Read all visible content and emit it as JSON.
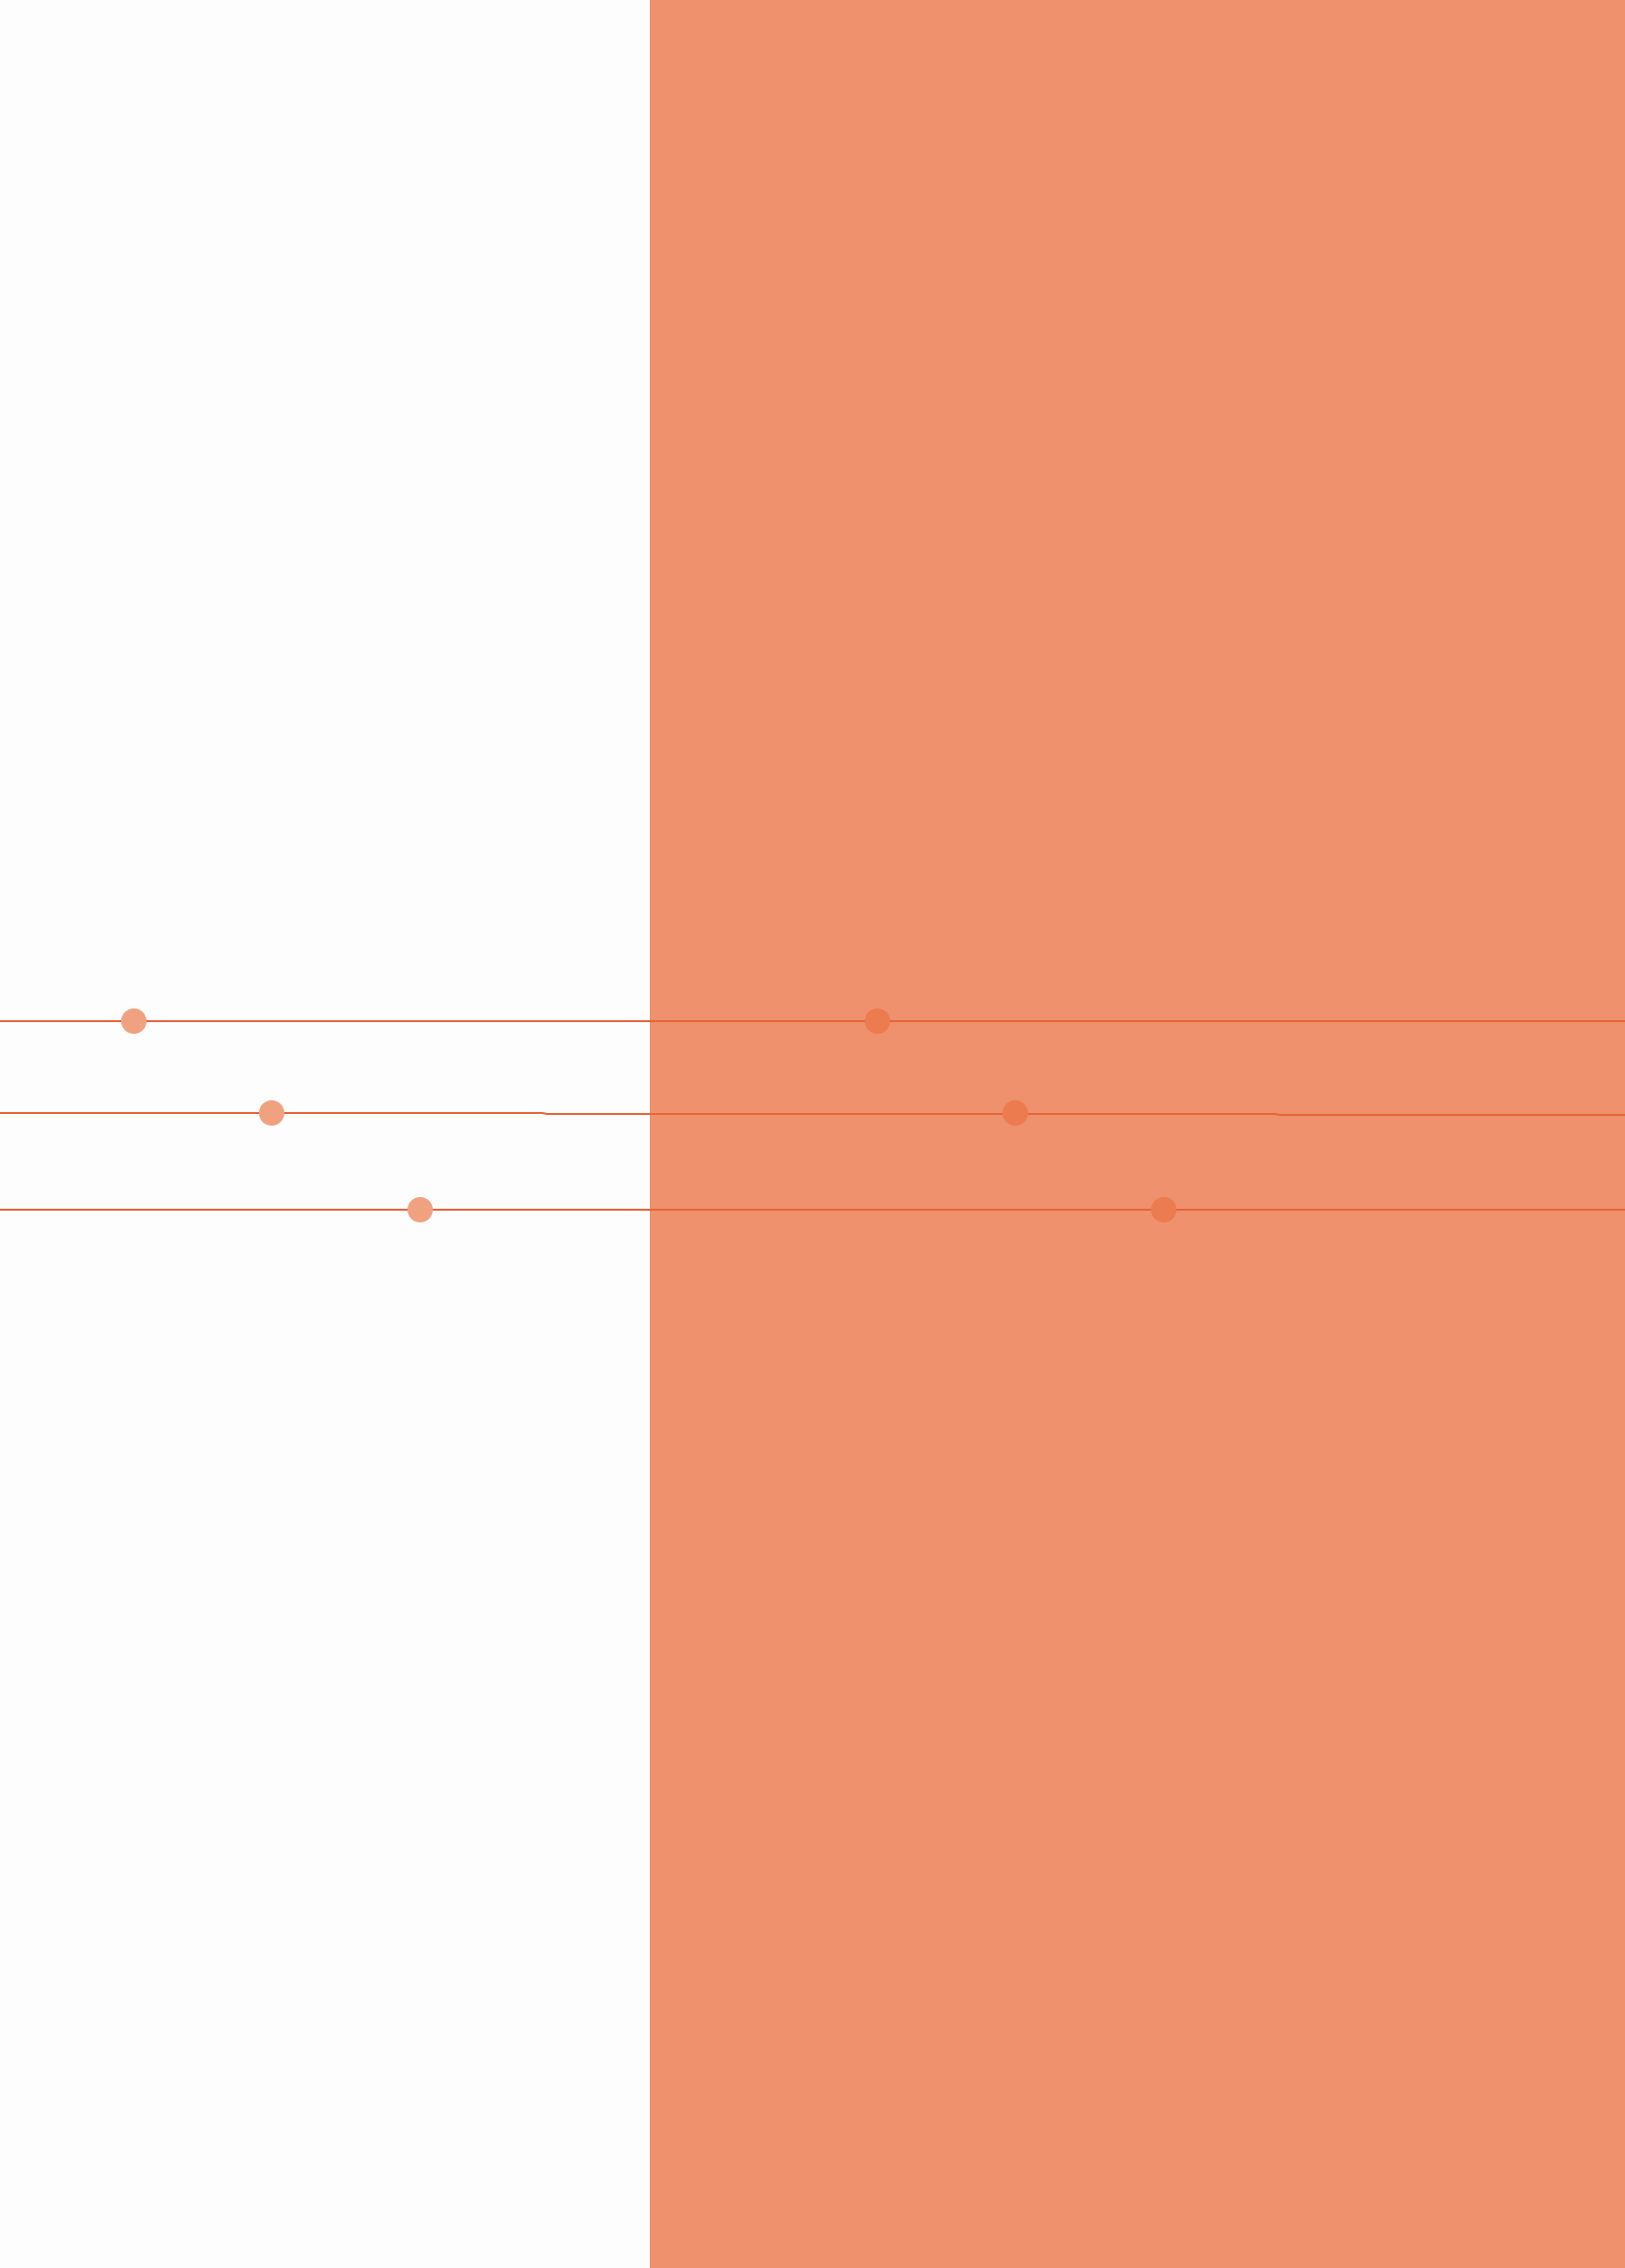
{
  "colors": {
    "page_background": "#fdfdfd",
    "panel_fill": "#ee916c",
    "line_stroke": "#e8643a",
    "dot_on_white": "#f0a280",
    "dot_on_panel": "#ec7b4f"
  }
}
